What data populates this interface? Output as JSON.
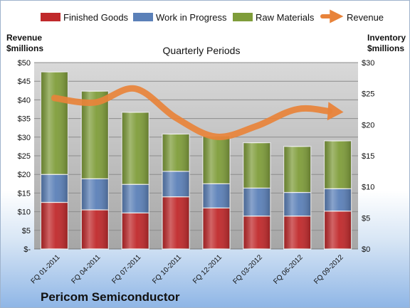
{
  "company": "Pericom Semiconductor",
  "chart_data": {
    "type": "bar",
    "subtype": "stacked-bar-with-line",
    "title": "Quarterly Periods",
    "left_axis_label": [
      "Revenue",
      "$millions"
    ],
    "right_axis_label": [
      "Inventory",
      "$millions"
    ],
    "categories": [
      "FQ 01-2011",
      "FQ 04-2011",
      "FQ 07-2011",
      "FQ 10-2011",
      "FQ 12-2011",
      "FQ 03-2012",
      "FQ 06-2012",
      "FQ 09-2012"
    ],
    "left_ylim": [
      0,
      50
    ],
    "left_ticks": [
      "$-",
      "$5",
      "$10",
      "$15",
      "$20",
      "$25",
      "$30",
      "$35",
      "$40",
      "$45",
      "$50"
    ],
    "right_ylim": [
      0,
      30
    ],
    "right_ticks": [
      "$0",
      "$5",
      "$10",
      "$15",
      "$20",
      "$25",
      "$30"
    ],
    "legend_position": "top",
    "grid": true,
    "series": [
      {
        "name": "Finished Goods",
        "axis": "right",
        "color": "#c0292b",
        "values": [
          7.5,
          6.3,
          5.8,
          8.4,
          6.6,
          5.3,
          5.3,
          6.1
        ]
      },
      {
        "name": "Work in Progress",
        "axis": "right",
        "color": "#5b80b8",
        "values": [
          4.5,
          5.0,
          4.6,
          4.1,
          3.9,
          4.5,
          3.8,
          3.6
        ]
      },
      {
        "name": "Raw Materials",
        "axis": "right",
        "color": "#7f9d3a",
        "values": [
          16.5,
          14.1,
          11.6,
          6.0,
          7.7,
          7.3,
          7.4,
          7.7
        ]
      },
      {
        "name": "Revenue",
        "axis": "left",
        "type": "line",
        "color": "#e8833a",
        "values": [
          40.5,
          39.3,
          43.0,
          35.2,
          30.1,
          33.0,
          37.5,
          36.8
        ]
      }
    ]
  }
}
